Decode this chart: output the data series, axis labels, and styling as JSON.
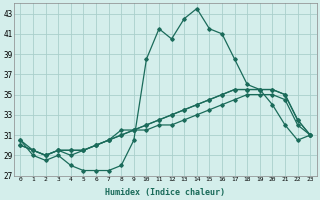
{
  "xlabel": "Humidex (Indice chaleur)",
  "x": [
    0,
    1,
    2,
    3,
    4,
    5,
    6,
    7,
    8,
    9,
    10,
    11,
    12,
    13,
    14,
    15,
    16,
    17,
    18,
    19,
    20,
    21,
    22,
    23
  ],
  "line1": [
    30.5,
    29.0,
    28.5,
    29.0,
    28.0,
    27.5,
    27.5,
    27.5,
    28.0,
    30.5,
    38.5,
    41.5,
    40.5,
    42.5,
    43.5,
    41.5,
    41.0,
    38.5,
    36.0,
    35.5,
    34.0,
    32.0,
    30.5,
    31.0
  ],
  "line2": [
    30.5,
    29.5,
    29.0,
    29.5,
    29.5,
    29.5,
    30.0,
    30.5,
    31.5,
    31.5,
    32.0,
    32.5,
    33.0,
    33.5,
    34.0,
    34.5,
    35.0,
    35.5,
    35.5,
    35.5,
    35.5,
    35.0,
    32.5,
    31.0
  ],
  "line3": [
    30.0,
    29.5,
    29.0,
    29.5,
    29.5,
    29.5,
    30.0,
    30.5,
    31.0,
    31.5,
    32.0,
    32.5,
    33.0,
    33.5,
    34.0,
    34.5,
    35.0,
    35.5,
    35.5,
    35.5,
    35.5,
    35.0,
    32.5,
    31.0
  ],
  "line4": [
    30.0,
    29.5,
    29.0,
    29.5,
    29.0,
    29.5,
    30.0,
    30.5,
    31.0,
    31.5,
    31.5,
    32.0,
    32.0,
    32.5,
    33.0,
    33.5,
    34.0,
    34.5,
    35.0,
    35.0,
    35.0,
    34.5,
    32.0,
    31.0
  ],
  "line_color": "#1a6b5a",
  "bg_color": "#d4eeeb",
  "grid_color": "#aacfcb",
  "ylim": [
    27,
    44
  ],
  "yticks": [
    27,
    29,
    31,
    33,
    35,
    37,
    39,
    41,
    43
  ],
  "xticks": [
    0,
    1,
    2,
    3,
    4,
    5,
    6,
    7,
    8,
    9,
    10,
    11,
    12,
    13,
    14,
    15,
    16,
    17,
    18,
    19,
    20,
    21,
    22,
    23
  ],
  "marker": "D",
  "markersize": 1.8,
  "linewidth": 0.9
}
